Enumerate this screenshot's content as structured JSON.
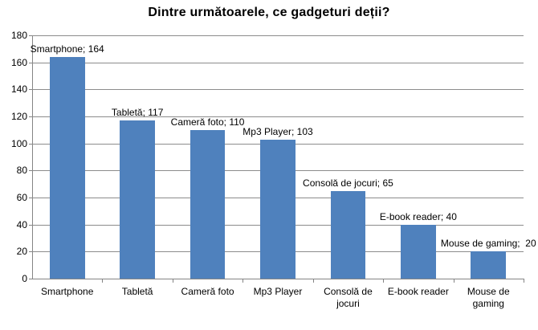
{
  "chart_data": {
    "type": "bar",
    "title": "Dintre următoarele, ce gadgeturi deții?",
    "categories": [
      "Smartphone",
      "Tabletă",
      "Cameră foto",
      "Mp3 Player",
      "Consolă de jocuri",
      "E-book reader",
      "Mouse de gaming"
    ],
    "values": [
      164,
      117,
      110,
      103,
      65,
      40,
      20
    ],
    "data_labels": [
      "Smartphone; 164",
      "Tabletă; 117",
      "Cameră foto; 110",
      "Mp3 Player; 103",
      "Consolă de jocuri; 65",
      "E-book reader; 40",
      "Mouse de gaming;  20"
    ],
    "xlabel": "",
    "ylabel": "",
    "ylim": [
      0,
      180
    ],
    "yticks": [
      0,
      20,
      40,
      60,
      80,
      100,
      120,
      140,
      160,
      180
    ],
    "grid": true,
    "legend": "none",
    "colors": {
      "bar": "#4F81BD",
      "gridline": "#8C8C8C",
      "axis": "#848484",
      "text": "#000000",
      "background": "#FFFFFF"
    }
  }
}
